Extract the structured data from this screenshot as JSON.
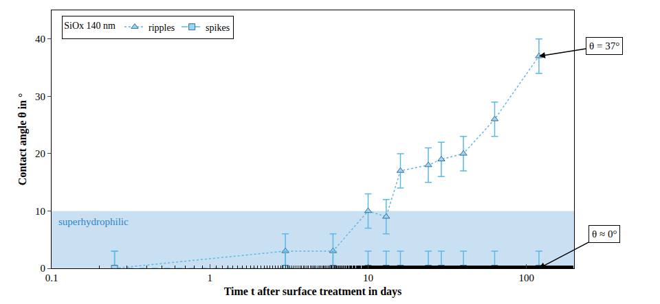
{
  "chart_data": {
    "type": "scatter",
    "x_label": "Time t after surface treatment in days",
    "y_label": "Contact angle θ in °",
    "legend_title": "SiOx 140 nm",
    "x": [
      0.25,
      3,
      6,
      10,
      13,
      16,
      24,
      29,
      40,
      63,
      120
    ],
    "series": [
      {
        "name": "ripples",
        "color": "#5cb8e6",
        "marker": "triangle-up",
        "line_style": "dot",
        "values": [
          0,
          3,
          3,
          10,
          9,
          17,
          18,
          19,
          20,
          26,
          37
        ],
        "errors": [
          3,
          3,
          3,
          3,
          3,
          3,
          3,
          3,
          3,
          3,
          3
        ]
      },
      {
        "name": "spikes",
        "color": "#5cb8e6",
        "marker": "square",
        "line_style": "dash",
        "values": [
          0,
          0,
          0,
          0,
          0,
          0,
          0,
          0,
          0,
          0,
          0
        ],
        "errors": [
          3,
          3,
          3,
          3,
          3,
          3,
          3,
          3,
          3,
          3,
          3
        ]
      }
    ],
    "xlim": [
      0.1,
      200
    ],
    "xticks": [
      0.1,
      1,
      10,
      100
    ],
    "ylim": [
      0,
      45
    ],
    "yticks": [
      0,
      10,
      20,
      30,
      40
    ],
    "log": "x",
    "grid": false,
    "legend": "top left",
    "band": {
      "label": "superhydrophilic",
      "y0": 0,
      "y1": 10,
      "color": "#c9dff2"
    },
    "annotations": [
      {
        "text": "θ = 37°",
        "x": 120,
        "y": 37
      },
      {
        "text": "θ ≈ 0°",
        "x": 120,
        "y": 0
      }
    ]
  }
}
